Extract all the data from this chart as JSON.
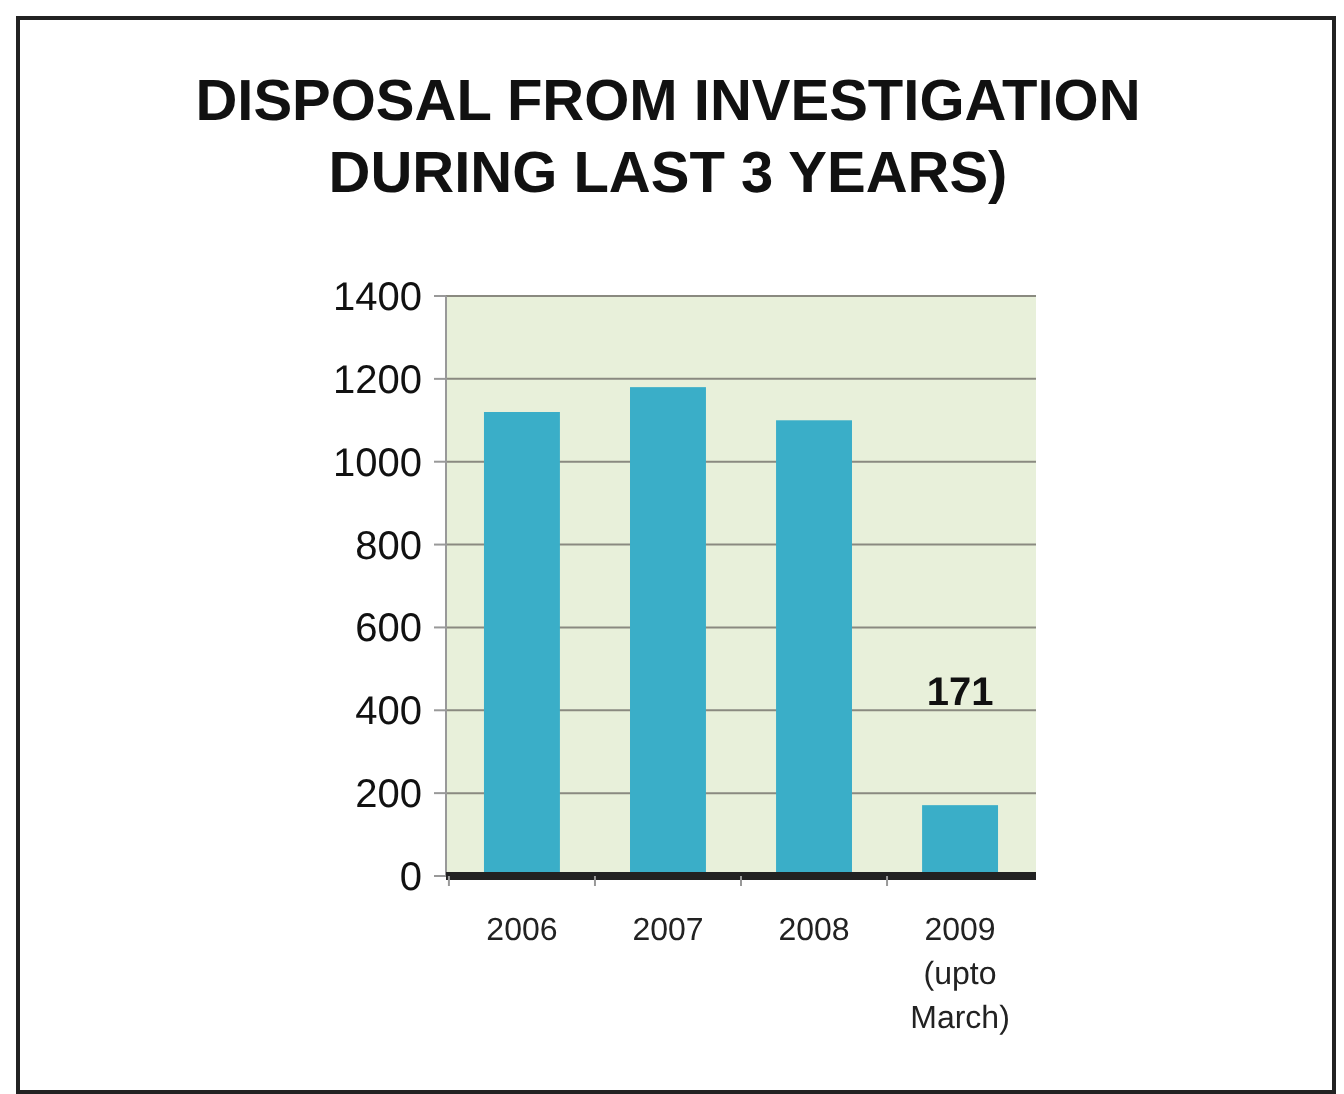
{
  "chart_data": {
    "type": "bar",
    "title": "DISPOSAL FROM INVESTIGATION\nDURING LAST 3 YEARS)",
    "categories": [
      "2006",
      "2007",
      "2008",
      "2009 (upto March)"
    ],
    "values": [
      1120,
      1180,
      1100,
      171
    ],
    "value_labels": [
      null,
      null,
      null,
      "171"
    ],
    "color": "#3aaec8",
    "ylim": [
      0,
      1400
    ],
    "yticks": [
      0,
      200,
      400,
      600,
      800,
      1000,
      1200,
      1400
    ],
    "grid": "y"
  }
}
